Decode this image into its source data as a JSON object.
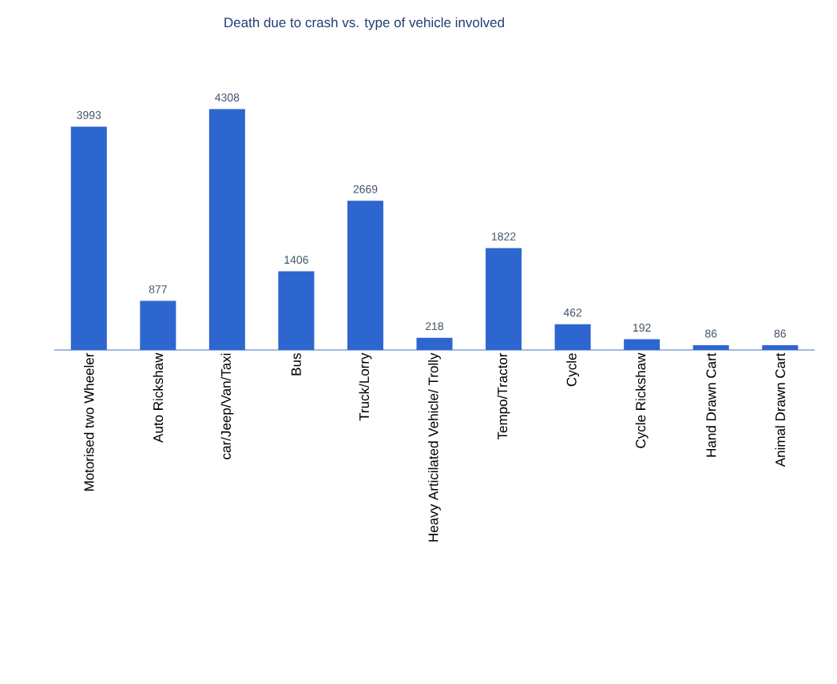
{
  "chart_data": {
    "type": "bar",
    "title": "Death due to crash vs. type of vehicle involved",
    "categories": [
      "Motorised two Wheeler",
      "Auto Rickshaw",
      "car/Jeep/Van/Taxi",
      "Bus",
      "Truck/Lorry",
      "Heavy Articilated Vehicle/ Trolly",
      "Tempo/Tractor",
      "Cycle",
      "Cycle Rickshaw",
      "Hand Drawn Cart",
      "Animal Drawn Cart"
    ],
    "values": [
      3993,
      877,
      4308,
      1406,
      2669,
      218,
      1822,
      462,
      192,
      86,
      86
    ],
    "color": "#2e66d0",
    "data_labels": true
  }
}
